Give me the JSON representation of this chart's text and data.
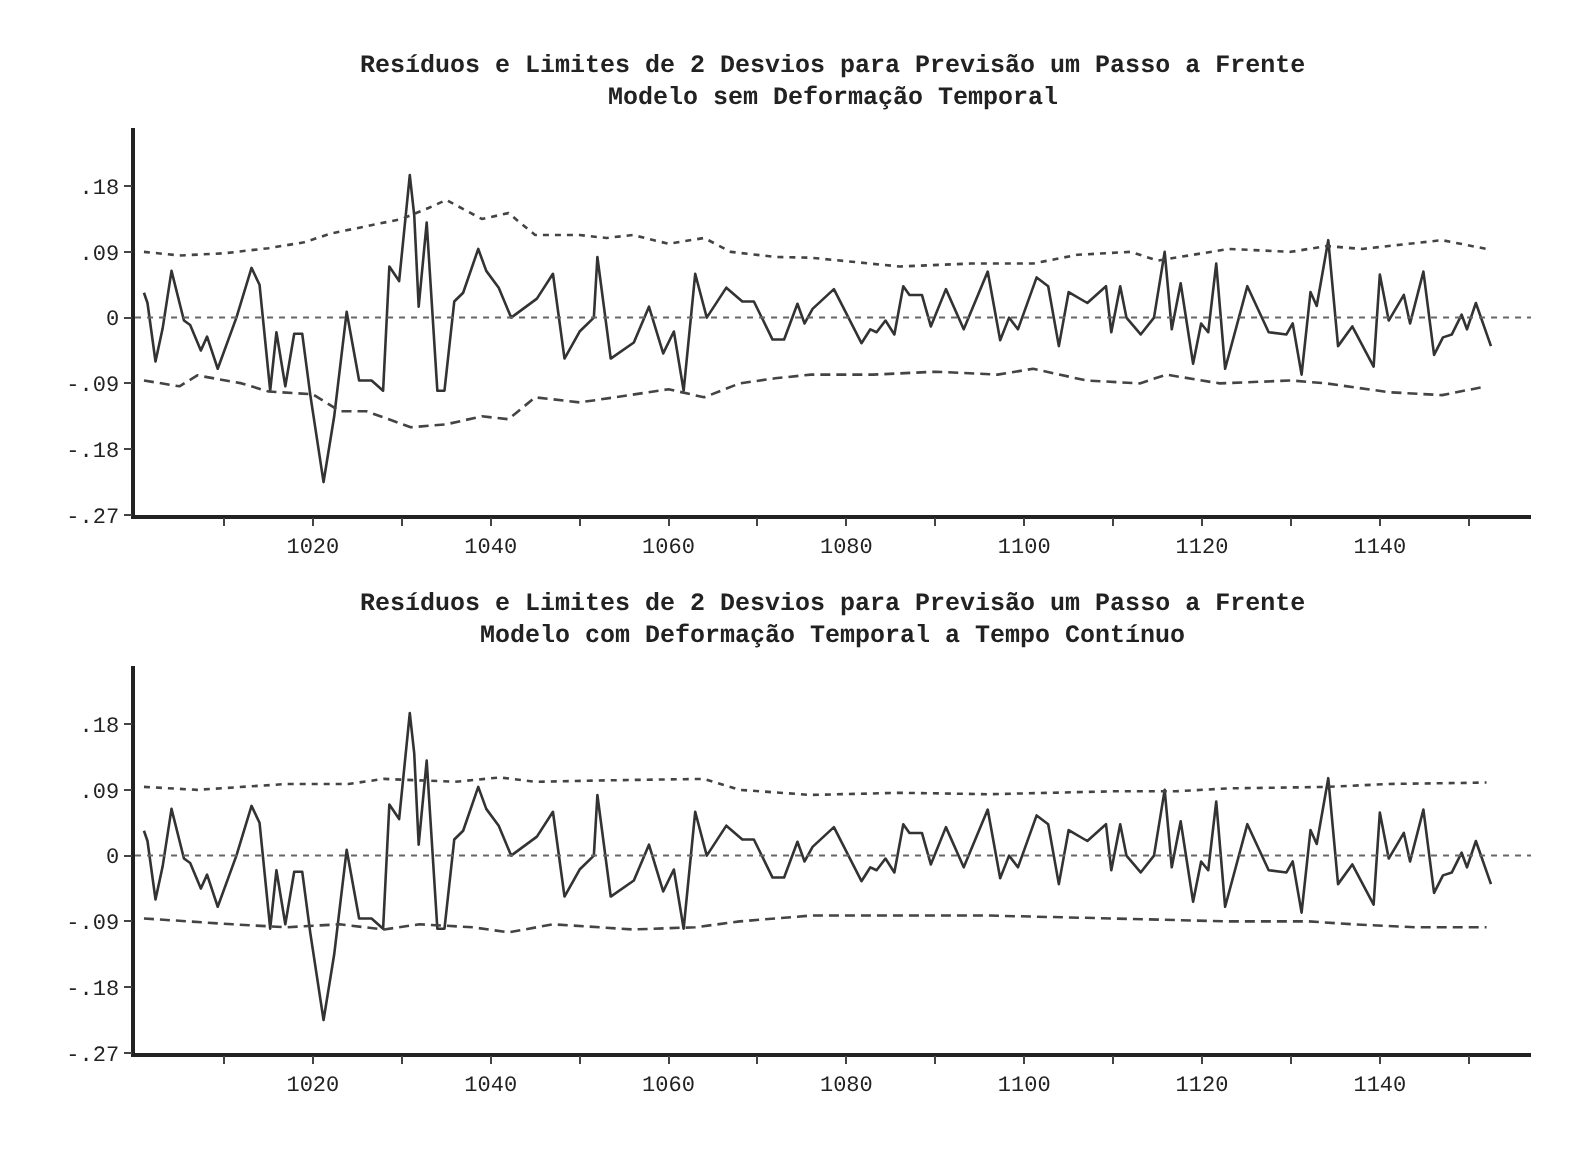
{
  "chart_data": [
    {
      "type": "line",
      "title": "Resíduos e Limites de 2 Desvios para Previsão um Passo a Frente",
      "subtitle": "Modelo sem Deformação Temporal",
      "xlim": [
        1000,
        1157
      ],
      "xticks": [
        {
          "value": 1010,
          "label": null
        },
        1020,
        {
          "value": 1030,
          "label": null
        },
        1040,
        {
          "value": 1050,
          "label": null
        },
        1060,
        {
          "value": 1070,
          "label": null
        },
        1080,
        {
          "value": 1090,
          "label": null
        },
        1100,
        {
          "value": 1110,
          "label": null
        },
        1120,
        {
          "value": 1130,
          "label": null
        },
        1140,
        {
          "value": 1150,
          "label": null
        }
      ],
      "ylim": [
        -0.27,
        0.26
      ],
      "yticks": [
        {
          "value": 0.18,
          "label": ".18"
        },
        {
          "value": 0.09,
          "label": ".09"
        },
        0,
        {
          "value": -0.09,
          "label": "-.09"
        },
        {
          "value": -0.18,
          "label": "-.18"
        },
        {
          "value": -0.27,
          "label": "-.27"
        }
      ],
      "marker": "none",
      "ref_lines": [
        {
          "axis": "y",
          "value": 0,
          "color": "#666666",
          "line_style": "dotted"
        }
      ],
      "series": [
        {
          "color": "#333333",
          "line_style": "solid",
          "x": [
            1001,
            1001.4,
            1002.3,
            1003.1,
            1004.1,
            1005.5,
            1006.2,
            1007.4,
            1008.1,
            1009.3,
            1011.4,
            1013.1,
            1014,
            1015.2,
            1015.9,
            1016.9,
            1017.9,
            1018.8,
            1019.7,
            1021.2,
            1022.4,
            1023.8,
            1025.2,
            1026.6,
            1027.9,
            1028.6,
            1029.7,
            1030.9,
            1031.4,
            1031.9,
            1032.8,
            1034,
            1034.8,
            1035.9,
            1036.9,
            1038.6,
            1039.5,
            1040.9,
            1042.3,
            1045.2,
            1047,
            1048.3,
            1050,
            1051.6,
            1052,
            1053.5,
            1056.1,
            1057.8,
            1059.4,
            1060.6,
            1061.7,
            1063,
            1064.3,
            1066.5,
            1068.3,
            1069.6,
            1071.7,
            1073,
            1074.5,
            1075.3,
            1076.2,
            1078.6,
            1081.7,
            1082.7,
            1083.4,
            1084.4,
            1085.4,
            1086.4,
            1087.1,
            1088.5,
            1089.5,
            1091.2,
            1093.2,
            1095.9,
            1097.3,
            1098.3,
            1099.3,
            1101.4,
            1102.7,
            1103.9,
            1105,
            1107.1,
            1109.2,
            1109.8,
            1110.8,
            1111.5,
            1113.1,
            1114.6,
            1115.8,
            1116.6,
            1117.6,
            1119,
            1119.9,
            1120.7,
            1121.6,
            1122.6,
            1125.1,
            1127.5,
            1129.5,
            1130.2,
            1131.2,
            1132.2,
            1132.9,
            1134.2,
            1135.3,
            1136.9,
            1139.3,
            1140,
            1141,
            1142.7,
            1143.4,
            1144.9,
            1146.1,
            1147.1,
            1148.1,
            1149.2,
            1149.8,
            1150.8,
            1152.5
          ],
          "values": [
            0.034,
            0.02,
            -0.06,
            -0.015,
            0.064,
            -0.004,
            -0.01,
            -0.045,
            -0.026,
            -0.07,
            0,
            0.068,
            0.045,
            -0.1,
            -0.02,
            -0.094,
            -0.022,
            -0.022,
            -0.105,
            -0.225,
            -0.135,
            0.008,
            -0.086,
            -0.086,
            -0.1,
            0.07,
            0.05,
            0.195,
            0.14,
            0.015,
            0.13,
            -0.1,
            -0.1,
            0.022,
            0.034,
            0.094,
            0.064,
            0.041,
            0,
            0.026,
            0.06,
            -0.056,
            -0.019,
            0,
            0.083,
            -0.056,
            -0.034,
            0.015,
            -0.049,
            -0.019,
            -0.1,
            0.06,
            0,
            0.041,
            0.022,
            0.022,
            -0.03,
            -0.03,
            0.019,
            -0.008,
            0.012,
            0.039,
            -0.035,
            -0.016,
            -0.02,
            -0.004,
            -0.023,
            0.043,
            0.031,
            0.031,
            -0.012,
            0.039,
            -0.016,
            0.063,
            -0.031,
            0,
            -0.016,
            0.055,
            0.043,
            -0.039,
            0.035,
            0.02,
            0.043,
            -0.02,
            0.043,
            0,
            -0.023,
            0,
            0.09,
            -0.016,
            0.047,
            -0.063,
            -0.008,
            -0.02,
            0.074,
            -0.07,
            0.043,
            -0.02,
            -0.023,
            -0.008,
            -0.078,
            0.035,
            0.016,
            0.106,
            -0.039,
            -0.012,
            -0.067,
            0.059,
            -0.004,
            0.031,
            -0.008,
            0.063,
            -0.051,
            -0.027,
            -0.023,
            0.004,
            -0.016,
            0.02,
            -0.039
          ]
        },
        {
          "color": "#444444",
          "line_style": "dotted",
          "x": [
            1001,
            1005,
            1010,
            1015,
            1019,
            1022,
            1026,
            1030,
            1033,
            1035,
            1039,
            1042,
            1045,
            1050,
            1053,
            1056,
            1060,
            1064,
            1067,
            1072,
            1076,
            1086,
            1094,
            1101,
            1106,
            1112,
            1115,
            1123,
            1130,
            1134,
            1138,
            1147,
            1152
          ],
          "values": [
            0.09,
            0.085,
            0.088,
            0.095,
            0.103,
            0.115,
            0.125,
            0.135,
            0.15,
            0.161,
            0.135,
            0.143,
            0.113,
            0.113,
            0.109,
            0.113,
            0.101,
            0.109,
            0.09,
            0.083,
            0.082,
            0.07,
            0.074,
            0.074,
            0.086,
            0.09,
            0.078,
            0.094,
            0.09,
            0.098,
            0.094,
            0.106,
            0.094
          ]
        },
        {
          "color": "#444444",
          "line_style": "dashed",
          "x": [
            1001,
            1005,
            1007,
            1012,
            1015,
            1020,
            1022,
            1023,
            1026,
            1031,
            1035,
            1039,
            1042,
            1045,
            1050,
            1054,
            1060,
            1064,
            1068,
            1072,
            1076,
            1083,
            1090,
            1097,
            1101,
            1107,
            1113,
            1116,
            1122,
            1130,
            1134,
            1141,
            1147,
            1152
          ],
          "values": [
            -0.086,
            -0.094,
            -0.079,
            -0.09,
            -0.101,
            -0.105,
            -0.12,
            -0.128,
            -0.128,
            -0.15,
            -0.146,
            -0.135,
            -0.139,
            -0.109,
            -0.116,
            -0.109,
            -0.098,
            -0.109,
            -0.09,
            -0.083,
            -0.078,
            -0.078,
            -0.074,
            -0.078,
            -0.07,
            -0.086,
            -0.09,
            -0.078,
            -0.09,
            -0.086,
            -0.09,
            -0.102,
            -0.106,
            -0.094
          ]
        }
      ]
    },
    {
      "type": "line",
      "title": "Resíduos e Limites de 2 Desvios para Previsão um Passo a Frente",
      "subtitle": "Modelo com Deformação Temporal a Tempo Contínuo",
      "xlim": [
        1000,
        1157
      ],
      "xticks": [
        {
          "value": 1010,
          "label": null
        },
        1020,
        {
          "value": 1030,
          "label": null
        },
        1040,
        {
          "value": 1050,
          "label": null
        },
        1060,
        {
          "value": 1070,
          "label": null
        },
        1080,
        {
          "value": 1090,
          "label": null
        },
        1100,
        {
          "value": 1110,
          "label": null
        },
        1120,
        {
          "value": 1130,
          "label": null
        },
        1140,
        {
          "value": 1150,
          "label": null
        }
      ],
      "ylim": [
        -0.27,
        0.26
      ],
      "yticks": [
        {
          "value": 0.18,
          "label": ".18"
        },
        {
          "value": 0.09,
          "label": ".09"
        },
        0,
        {
          "value": -0.09,
          "label": "-.09"
        },
        {
          "value": -0.18,
          "label": "-.18"
        },
        {
          "value": -0.27,
          "label": "-.27"
        }
      ],
      "marker": "none",
      "ref_lines": [
        {
          "axis": "y",
          "value": 0,
          "color": "#666666",
          "line_style": "dotted"
        }
      ],
      "series": [
        {
          "color": "#333333",
          "line_style": "solid",
          "x": [
            1001,
            1001.4,
            1002.3,
            1003.1,
            1004.1,
            1005.5,
            1006.2,
            1007.4,
            1008.1,
            1009.3,
            1011.4,
            1013.1,
            1014,
            1015.2,
            1015.9,
            1016.9,
            1017.9,
            1018.8,
            1019.7,
            1021.2,
            1022.4,
            1023.8,
            1025.2,
            1026.6,
            1027.9,
            1028.6,
            1029.7,
            1030.9,
            1031.4,
            1031.9,
            1032.8,
            1034,
            1034.8,
            1035.9,
            1036.9,
            1038.6,
            1039.5,
            1040.9,
            1042.3,
            1045.2,
            1047,
            1048.3,
            1050,
            1051.6,
            1052,
            1053.5,
            1056.1,
            1057.8,
            1059.4,
            1060.6,
            1061.7,
            1063,
            1064.3,
            1066.5,
            1068.3,
            1069.6,
            1071.7,
            1073,
            1074.5,
            1075.3,
            1076.2,
            1078.6,
            1081.7,
            1082.7,
            1083.4,
            1084.4,
            1085.4,
            1086.4,
            1087.1,
            1088.5,
            1089.5,
            1091.2,
            1093.2,
            1095.9,
            1097.3,
            1098.3,
            1099.3,
            1101.4,
            1102.7,
            1103.9,
            1105,
            1107.1,
            1109.2,
            1109.8,
            1110.8,
            1111.5,
            1113.1,
            1114.6,
            1115.8,
            1116.6,
            1117.6,
            1119,
            1119.9,
            1120.7,
            1121.6,
            1122.6,
            1125.1,
            1127.5,
            1129.5,
            1130.2,
            1131.2,
            1132.2,
            1132.9,
            1134.2,
            1135.3,
            1136.9,
            1139.3,
            1140,
            1141,
            1142.7,
            1143.4,
            1144.9,
            1146.1,
            1147.1,
            1148.1,
            1149.2,
            1149.8,
            1150.8,
            1152.5
          ],
          "values": [
            0.034,
            0.02,
            -0.06,
            -0.015,
            0.064,
            -0.004,
            -0.01,
            -0.045,
            -0.026,
            -0.07,
            0,
            0.068,
            0.045,
            -0.1,
            -0.02,
            -0.094,
            -0.022,
            -0.022,
            -0.105,
            -0.225,
            -0.135,
            0.008,
            -0.086,
            -0.086,
            -0.1,
            0.07,
            0.05,
            0.195,
            0.14,
            0.015,
            0.13,
            -0.1,
            -0.1,
            0.022,
            0.034,
            0.094,
            0.064,
            0.041,
            0,
            0.026,
            0.06,
            -0.056,
            -0.019,
            0,
            0.083,
            -0.056,
            -0.034,
            0.015,
            -0.049,
            -0.019,
            -0.1,
            0.06,
            0,
            0.041,
            0.022,
            0.022,
            -0.03,
            -0.03,
            0.019,
            -0.008,
            0.012,
            0.039,
            -0.035,
            -0.016,
            -0.02,
            -0.004,
            -0.023,
            0.043,
            0.031,
            0.031,
            -0.012,
            0.039,
            -0.016,
            0.063,
            -0.031,
            0,
            -0.016,
            0.055,
            0.043,
            -0.039,
            0.035,
            0.02,
            0.043,
            -0.02,
            0.043,
            0,
            -0.023,
            0,
            0.09,
            -0.016,
            0.047,
            -0.063,
            -0.008,
            -0.02,
            0.074,
            -0.07,
            0.043,
            -0.02,
            -0.023,
            -0.008,
            -0.078,
            0.035,
            0.016,
            0.106,
            -0.039,
            -0.012,
            -0.067,
            0.059,
            -0.004,
            0.031,
            -0.008,
            0.063,
            -0.051,
            -0.027,
            -0.023,
            0.004,
            -0.016,
            0.02,
            -0.039
          ]
        },
        {
          "color": "#444444",
          "line_style": "dotted",
          "x": [
            1001,
            1007,
            1017,
            1024,
            1028,
            1036,
            1041,
            1045,
            1053,
            1064,
            1068,
            1076,
            1086,
            1096,
            1110,
            1117,
            1123,
            1134,
            1141,
            1152
          ],
          "values": [
            0.094,
            0.09,
            0.098,
            0.098,
            0.105,
            0.101,
            0.107,
            0.101,
            0.103,
            0.105,
            0.09,
            0.083,
            0.086,
            0.084,
            0.088,
            0.088,
            0.092,
            0.094,
            0.098,
            0.1
          ]
        },
        {
          "color": "#444444",
          "line_style": "dashed",
          "x": [
            1001,
            1011,
            1017,
            1023,
            1028,
            1032,
            1038,
            1042,
            1047,
            1056,
            1063,
            1068,
            1076,
            1086,
            1096,
            1110,
            1123,
            1132,
            1137,
            1144,
            1152
          ],
          "values": [
            -0.086,
            -0.094,
            -0.098,
            -0.094,
            -0.101,
            -0.094,
            -0.098,
            -0.105,
            -0.094,
            -0.101,
            -0.098,
            -0.09,
            -0.082,
            -0.082,
            -0.082,
            -0.086,
            -0.09,
            -0.09,
            -0.094,
            -0.098,
            -0.098
          ]
        }
      ]
    }
  ]
}
